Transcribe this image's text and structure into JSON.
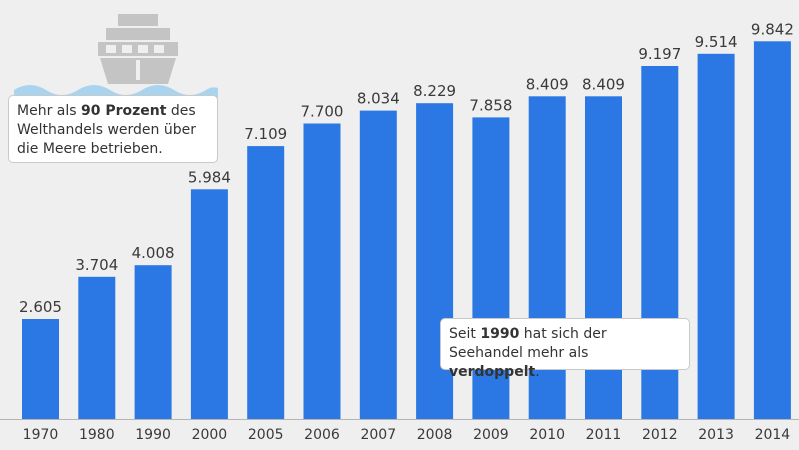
{
  "chart_data": {
    "type": "bar",
    "categories": [
      "1970",
      "1980",
      "1990",
      "2000",
      "2005",
      "2006",
      "2007",
      "2008",
      "2009",
      "2010",
      "2011",
      "2012",
      "2013",
      "2014"
    ],
    "values": [
      2605,
      3704,
      4008,
      5984,
      7109,
      7700,
      8034,
      8229,
      7858,
      8409,
      8409,
      9197,
      9514,
      9842
    ],
    "value_labels": [
      "2.605",
      "3.704",
      "4.008",
      "5.984",
      "7.109",
      "7.700",
      "8.034",
      "8.229",
      "7.858",
      "8.409",
      "8.409",
      "9.197",
      "9.514",
      "9.842"
    ],
    "ylim": [
      0,
      10500
    ],
    "grid": false,
    "bar_color": "#2b78e4"
  },
  "notes": {
    "note1": {
      "pre": "Mehr als ",
      "bold": "90 Prozent",
      "post": " des Welthandels werden über die Meere betrieben."
    },
    "note2": {
      "pre": "Seit ",
      "bold1": "1990",
      "mid": " hat sich der Seehandel mehr als ",
      "bold2": "verdoppelt",
      "post": "."
    }
  },
  "icons": {
    "ship": "ship-icon",
    "waves": "waves-icon"
  },
  "colors": {
    "background": "#efefef",
    "icon": "#c4c4c4",
    "waves": "#a9d4ef"
  }
}
